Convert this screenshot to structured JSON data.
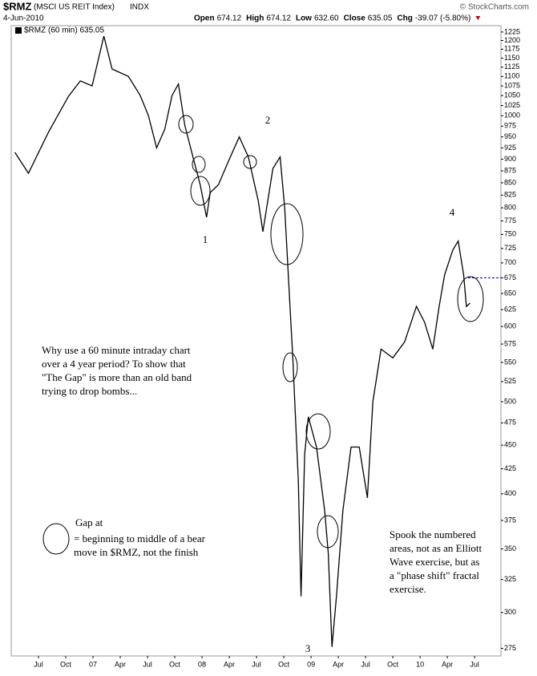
{
  "chart_data": {
    "type": "line",
    "symbol": "$RMZ",
    "name": "(MSCI US REIT Index)",
    "exchange": "INDX",
    "date": "4-Jun-2010",
    "quote": [
      {
        "label": "Open",
        "value": "674.12"
      },
      {
        "label": "High",
        "value": "674.12"
      },
      {
        "label": "Low",
        "value": "632.60"
      },
      {
        "label": "Close",
        "value": "635.05"
      },
      {
        "label": "Chg",
        "value": "-39.07 (-5.80%)"
      }
    ],
    "source": "© StockCharts.com",
    "series": [
      {
        "name": "$RMZ (60 min) 635.05",
        "color": "#000000",
        "x": [
          0.4,
          1.9,
          4.1,
          6.3,
          7.6,
          8.9,
          10.2,
          11.1,
          12.9,
          14.2,
          15.1,
          16.0,
          16.9,
          17.7,
          18.4,
          19.1,
          20.0,
          20.8,
          21.5,
          21.9,
          22.8,
          23.9,
          25.1,
          26.1,
          27.2,
          27.7,
          28.8,
          29.6,
          30.1,
          30.5,
          31.0,
          31.6,
          31.9,
          32.3,
          32.7,
          33.6,
          34.5,
          34.9,
          35.3,
          35.8,
          36.5,
          37.4,
          38.3,
          39.2,
          39.8,
          40.7,
          42.0,
          43.3,
          44.6,
          45.5,
          46.4,
          47.1,
          47.7,
          48.6,
          49.2,
          49.8,
          50.1,
          50.5
        ],
        "values": [
          915,
          870,
          961,
          1048,
          1088,
          1075,
          1213,
          1120,
          1100,
          1050,
          1000,
          925,
          968,
          1050,
          1080,
          978,
          905,
          846,
          782,
          830,
          846,
          895,
          950,
          905,
          813,
          755,
          880,
          905,
          800,
          680,
          554,
          413,
          312,
          440,
          482,
          448,
          384,
          346,
          276,
          312,
          384,
          448,
          448,
          396,
          500,
          568,
          556,
          578,
          630,
          606,
          568,
          630,
          680,
          722,
          738,
          680,
          630,
          635
        ]
      }
    ],
    "reference_line": 675,
    "log_scale": true,
    "ylim": [
      270,
      1244
    ],
    "yticks": [
      275,
      300,
      325,
      350,
      375,
      400,
      425,
      450,
      475,
      500,
      525,
      550,
      575,
      600,
      625,
      650,
      675,
      700,
      725,
      750,
      775,
      800,
      825,
      850,
      875,
      900,
      925,
      950,
      975,
      1000,
      1025,
      1050,
      1075,
      1100,
      1125,
      1150,
      1175,
      1200,
      1225
    ],
    "xlim": [
      0,
      53.9
    ],
    "xticks": [
      {
        "value": 3,
        "label": "Jul"
      },
      {
        "value": 6,
        "label": "Oct"
      },
      {
        "value": 9,
        "label": "07"
      },
      {
        "value": 12,
        "label": "Apr"
      },
      {
        "value": 15,
        "label": "Jul"
      },
      {
        "value": 18,
        "label": "Oct"
      },
      {
        "value": 21,
        "label": "08"
      },
      {
        "value": 24,
        "label": "Apr"
      },
      {
        "value": 27,
        "label": "Jul"
      },
      {
        "value": 30,
        "label": "Oct"
      },
      {
        "value": 33,
        "label": "09"
      },
      {
        "value": 36,
        "label": "Apr"
      },
      {
        "value": 39,
        "label": "Jul"
      },
      {
        "value": 42,
        "label": "Oct"
      },
      {
        "value": 45,
        "label": "10"
      },
      {
        "value": 48,
        "label": "Apr"
      },
      {
        "value": 51,
        "label": "Jul"
      }
    ],
    "wave_labels": [
      "1",
      "2",
      "3",
      "4"
    ],
    "notes": [
      [
        "Why use a 60 minute intraday chart",
        "over a 4 year period? To show that",
        "\"The Gap\" is more than an old band",
        "trying to drop bombs..."
      ],
      [
        "Gap at",
        "= beginning to middle of a bear",
        "move in $RMZ, not the finish"
      ],
      [
        "Spook the numbered",
        "areas, not as an Elliott",
        "Wave exercise, but as",
        "a \"phase shift\" fractal",
        "exercise."
      ]
    ]
  }
}
